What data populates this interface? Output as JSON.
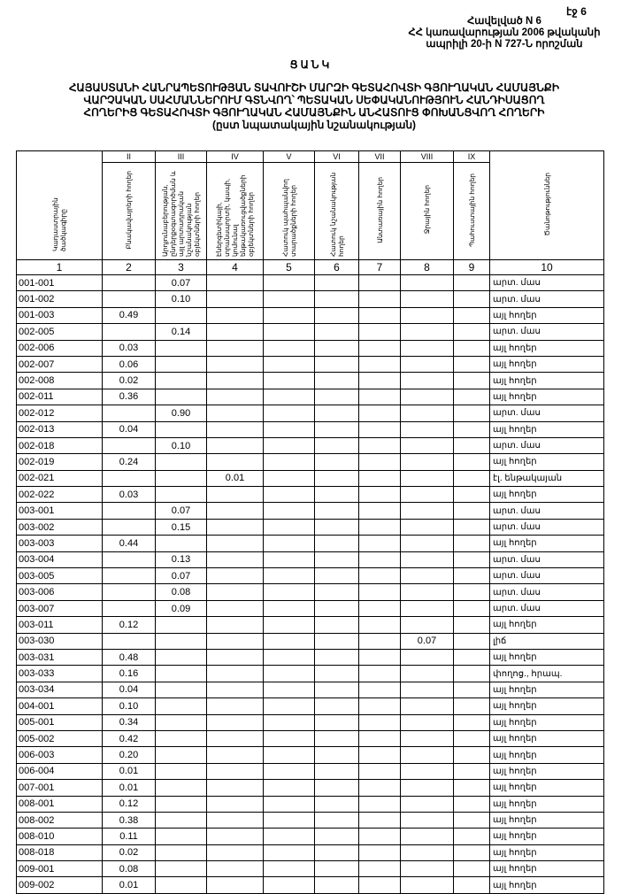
{
  "page_number": "էջ 6",
  "annex": {
    "line1": "Հավելված N 6",
    "line2": "ՀՀ կառավարության 2006 թվականի",
    "line3": "ապրիլի 20-ի N 727-Ն որոշման"
  },
  "doc_title": "ՑԱՆԿ",
  "heading": {
    "line1": "ՀԱՅԱՍՏԱՆԻ ՀԱՆՐԱՊԵՏՈՒԹՅԱՆ ՏԱՎՈՒՇԻ ՄԱՐԶԻ ԳԵՏԱՀՈՎՏԻ ԳՅՈՒՂԱԿԱՆ ՀԱՄԱՅՆՔԻ",
    "line2": "ՎԱՐՉԱԿԱՆ ՍԱՀՄԱՆՆԵՐՈՒՄ ԳՏՆՎՈՂ՝ ՊԵՏԱԿԱՆ ՍԵՓԱԿԱՆՈՒԹՅՈՒՆ ՀԱՆԴԻՍԱՑՈՂ",
    "line3": "ՀՈՂԵՐԻՑ ԳԵՏԱՀՈՎՏԻ ԳՅՈՒՂԱԿԱՆ ՀԱՄԱՅՆՔԻՆ ԱՆՀԱՏՈՒՑ ՓՈԽԱՆՑՎՈՂ ՀՈՂԵՐԻ",
    "line4": "(ըստ նպատակային նշանակության)"
  },
  "table": {
    "roman": [
      "II",
      "III",
      "IV",
      "V",
      "VI",
      "VII",
      "VIII",
      "IX"
    ],
    "headers": [
      "Կադաստրային ծածկագիրը",
      "Բնակավայրերի հողեր",
      "Արդյունաբերության, ընդերքօգտագործման և այլ արտադրական նշանակության օբյեկտների հողեր",
      "Էներգետիկայի, տրանսպորտի, կապի, կոմունալ ենթակառուցվածքների օբյեկտների հողեր",
      "Հատուկ պահպանվող տարածքների հողեր",
      "Հատուկ նշանակության հողեր",
      "Անտառային հողեր",
      "Ջրային հողեր",
      "Պահուստային հողեր",
      "Ծանոթություններ"
    ],
    "numbers": [
      "1",
      "2",
      "3",
      "4",
      "5",
      "6",
      "7",
      "8",
      "9",
      "10"
    ],
    "rows": [
      {
        "code": "001-001",
        "c2": "",
        "c3": "0.07",
        "c4": "",
        "c8": "",
        "note": "արտ. մաս"
      },
      {
        "code": "001-002",
        "c2": "",
        "c3": "0.10",
        "c4": "",
        "c8": "",
        "note": "արտ. մաս"
      },
      {
        "code": "001-003",
        "c2": "0.49",
        "c3": "",
        "c4": "",
        "c8": "",
        "note": "այլ հողեր"
      },
      {
        "code": "002-005",
        "c2": "",
        "c3": "0.14",
        "c4": "",
        "c8": "",
        "note": "արտ. մաս"
      },
      {
        "code": "002-006",
        "c2": "0.03",
        "c3": "",
        "c4": "",
        "c8": "",
        "note": "այլ հողեր"
      },
      {
        "code": "002-007",
        "c2": "0.06",
        "c3": "",
        "c4": "",
        "c8": "",
        "note": "այլ հողեր"
      },
      {
        "code": "002-008",
        "c2": "0.02",
        "c3": "",
        "c4": "",
        "c8": "",
        "note": "այլ հողեր"
      },
      {
        "code": "002-011",
        "c2": "0.36",
        "c3": "",
        "c4": "",
        "c8": "",
        "note": "այլ հողեր"
      },
      {
        "code": "002-012",
        "c2": "",
        "c3": "0.90",
        "c4": "",
        "c8": "",
        "note": "արտ. մաս"
      },
      {
        "code": "002-013",
        "c2": "0.04",
        "c3": "",
        "c4": "",
        "c8": "",
        "note": "այլ հողեր"
      },
      {
        "code": "002-018",
        "c2": "",
        "c3": "0.10",
        "c4": "",
        "c8": "",
        "note": "արտ. մաս"
      },
      {
        "code": "002-019",
        "c2": "0.24",
        "c3": "",
        "c4": "",
        "c8": "",
        "note": "այլ հողեր"
      },
      {
        "code": "002-021",
        "c2": "",
        "c3": "",
        "c4": "0.01",
        "c8": "",
        "note": "էլ. ենթակայան"
      },
      {
        "code": "002-022",
        "c2": "0.03",
        "c3": "",
        "c4": "",
        "c8": "",
        "note": "այլ հողեր"
      },
      {
        "code": "003-001",
        "c2": "",
        "c3": "0.07",
        "c4": "",
        "c8": "",
        "note": "արտ. մաս"
      },
      {
        "code": "003-002",
        "c2": "",
        "c3": "0.15",
        "c4": "",
        "c8": "",
        "note": "արտ. մաս"
      },
      {
        "code": "003-003",
        "c2": "0.44",
        "c3": "",
        "c4": "",
        "c8": "",
        "note": "այլ հողեր"
      },
      {
        "code": "003-004",
        "c2": "",
        "c3": "0.13",
        "c4": "",
        "c8": "",
        "note": "արտ. մաս"
      },
      {
        "code": "003-005",
        "c2": "",
        "c3": "0.07",
        "c4": "",
        "c8": "",
        "note": "արտ. մաս"
      },
      {
        "code": "003-006",
        "c2": "",
        "c3": "0.08",
        "c4": "",
        "c8": "",
        "note": "արտ. մաս"
      },
      {
        "code": "003-007",
        "c2": "",
        "c3": "0.09",
        "c4": "",
        "c8": "",
        "note": "արտ. մաս"
      },
      {
        "code": "003-011",
        "c2": "0.12",
        "c3": "",
        "c4": "",
        "c8": "",
        "note": "այլ հողեր"
      },
      {
        "code": "003-030",
        "c2": "",
        "c3": "",
        "c4": "",
        "c8": "0.07",
        "note": "լիճ"
      },
      {
        "code": "003-031",
        "c2": "0.48",
        "c3": "",
        "c4": "",
        "c8": "",
        "note": "այլ հողեր"
      },
      {
        "code": "003-033",
        "c2": "0.16",
        "c3": "",
        "c4": "",
        "c8": "",
        "note": "փողոց., հրապ."
      },
      {
        "code": "003-034",
        "c2": "0.04",
        "c3": "",
        "c4": "",
        "c8": "",
        "note": "այլ հողեր"
      },
      {
        "code": "004-001",
        "c2": "0.10",
        "c3": "",
        "c4": "",
        "c8": "",
        "note": "այլ հողեր"
      },
      {
        "code": "005-001",
        "c2": "0.34",
        "c3": "",
        "c4": "",
        "c8": "",
        "note": "այլ հողեր"
      },
      {
        "code": "005-002",
        "c2": "0.42",
        "c3": "",
        "c4": "",
        "c8": "",
        "note": "այլ հողեր"
      },
      {
        "code": "006-003",
        "c2": "0.20",
        "c3": "",
        "c4": "",
        "c8": "",
        "note": "այլ հողեր"
      },
      {
        "code": "006-004",
        "c2": "0.01",
        "c3": "",
        "c4": "",
        "c8": "",
        "note": "այլ հողեր"
      },
      {
        "code": "007-001",
        "c2": "0.01",
        "c3": "",
        "c4": "",
        "c8": "",
        "note": "այլ հողեր"
      },
      {
        "code": "008-001",
        "c2": "0.12",
        "c3": "",
        "c4": "",
        "c8": "",
        "note": "այլ հողեր"
      },
      {
        "code": "008-002",
        "c2": "0.38",
        "c3": "",
        "c4": "",
        "c8": "",
        "note": "այլ հողեր"
      },
      {
        "code": "008-010",
        "c2": "0.11",
        "c3": "",
        "c4": "",
        "c8": "",
        "note": "այլ հողեր"
      },
      {
        "code": "008-018",
        "c2": "0.02",
        "c3": "",
        "c4": "",
        "c8": "",
        "note": "այլ հողեր"
      },
      {
        "code": "009-001",
        "c2": "0.08",
        "c3": "",
        "c4": "",
        "c8": "",
        "note": "այլ հողեր"
      },
      {
        "code": "009-002",
        "c2": "0.01",
        "c3": "",
        "c4": "",
        "c8": "",
        "note": "այլ հողեր"
      }
    ]
  }
}
